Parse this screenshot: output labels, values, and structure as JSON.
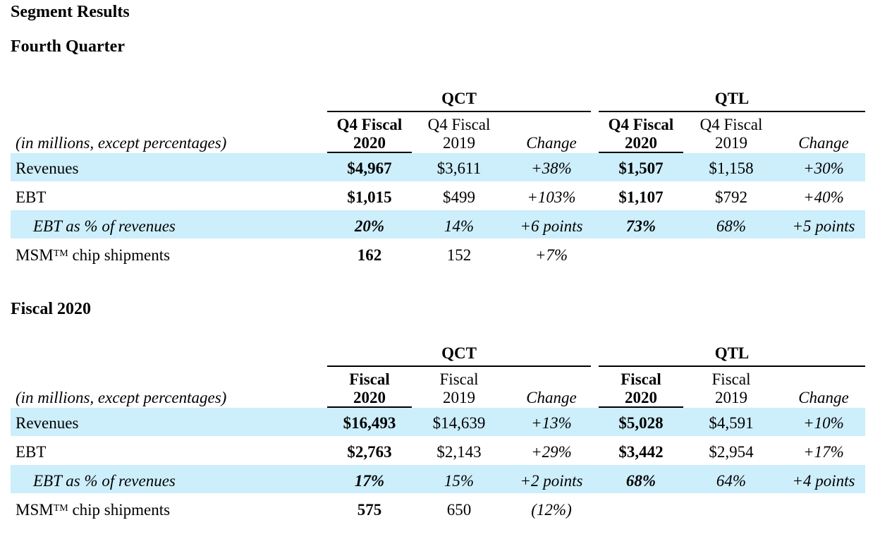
{
  "title": "Segment Results",
  "sections": [
    {
      "heading": "Fourth Quarter",
      "units_label": "(in millions, except percentages)",
      "groups": [
        {
          "name": "QCT",
          "col_current_l1": "Q4 Fiscal",
          "col_current_l2": "2020",
          "col_prior_l1": "Q4 Fiscal",
          "col_prior_l2": "2019",
          "col_change": "Change"
        },
        {
          "name": "QTL",
          "col_current_l1": "Q4 Fiscal",
          "col_current_l2": "2020",
          "col_prior_l1": "Q4 Fiscal",
          "col_prior_l2": "2019",
          "col_change": "Change"
        }
      ],
      "rows": [
        {
          "label": "Revenues",
          "qct": [
            "$4,967",
            "$3,611",
            "+38%"
          ],
          "qtl": [
            "$1,507",
            "$1,158",
            "+30%"
          ]
        },
        {
          "label": "EBT",
          "qct": [
            "$1,015",
            "$499",
            "+103%"
          ],
          "qtl": [
            "$1,107",
            "$792",
            "+40%"
          ]
        },
        {
          "label": "EBT as % of revenues",
          "qct": [
            "20%",
            "14%",
            "+6 points"
          ],
          "qtl": [
            "73%",
            "68%",
            "+5 points"
          ]
        },
        {
          "label_main": "MSM",
          "label_sup": "TM",
          "label_rest": " chip shipments",
          "qct": [
            "162",
            "152",
            "+7%"
          ]
        }
      ]
    },
    {
      "heading": "Fiscal 2020",
      "units_label": "(in millions, except percentages)",
      "groups": [
        {
          "name": "QCT",
          "col_current_l1": "Fiscal",
          "col_current_l2": "2020",
          "col_prior_l1": "Fiscal",
          "col_prior_l2": "2019",
          "col_change": "Change"
        },
        {
          "name": "QTL",
          "col_current_l1": "Fiscal",
          "col_current_l2": "2020",
          "col_prior_l1": "Fiscal",
          "col_prior_l2": "2019",
          "col_change": "Change"
        }
      ],
      "rows": [
        {
          "label": "Revenues",
          "qct": [
            "$16,493",
            "$14,639",
            "+13%"
          ],
          "qtl": [
            "$5,028",
            "$4,591",
            "+10%"
          ]
        },
        {
          "label": "EBT",
          "qct": [
            "$2,763",
            "$2,143",
            "+29%"
          ],
          "qtl": [
            "$3,442",
            "$2,954",
            "+17%"
          ]
        },
        {
          "label": "EBT as % of revenues",
          "qct": [
            "17%",
            "15%",
            "+2 points"
          ],
          "qtl": [
            "68%",
            "64%",
            "+4 points"
          ]
        },
        {
          "label_main": "MSM",
          "label_sup": "TM",
          "label_rest": " chip shipments",
          "qct": [
            "575",
            "650",
            "(12%)"
          ]
        }
      ]
    }
  ],
  "colors": {
    "row_band": "#cdeefb",
    "rule": "#000000"
  }
}
